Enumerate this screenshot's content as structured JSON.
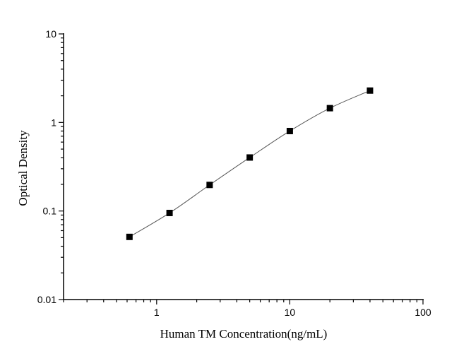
{
  "chart_data": {
    "type": "scatter",
    "title": "",
    "xlabel": "Human TM Concentration(ng/mL)",
    "ylabel": "Optical Density",
    "x_scale": "log",
    "y_scale": "log",
    "xlim": [
      0.2,
      100
    ],
    "ylim": [
      0.01,
      10
    ],
    "x_ticks": [
      {
        "v": 1,
        "label": "1"
      },
      {
        "v": 10,
        "label": "10"
      },
      {
        "v": 100,
        "label": "100"
      }
    ],
    "y_ticks": [
      {
        "v": 0.01,
        "label": "0.01"
      },
      {
        "v": 0.1,
        "label": "0.1"
      },
      {
        "v": 1,
        "label": "1"
      },
      {
        "v": 10,
        "label": "10"
      }
    ],
    "grid": false,
    "fit_curve": true,
    "marker": "square",
    "colors": {
      "marker": "#000000",
      "line": "#555555"
    },
    "series": [
      {
        "x": [
          0.625,
          1.25,
          2.5,
          5,
          10,
          20,
          40
        ],
        "y": [
          0.051,
          0.095,
          0.197,
          0.402,
          0.8,
          1.45,
          2.29
        ]
      }
    ]
  }
}
